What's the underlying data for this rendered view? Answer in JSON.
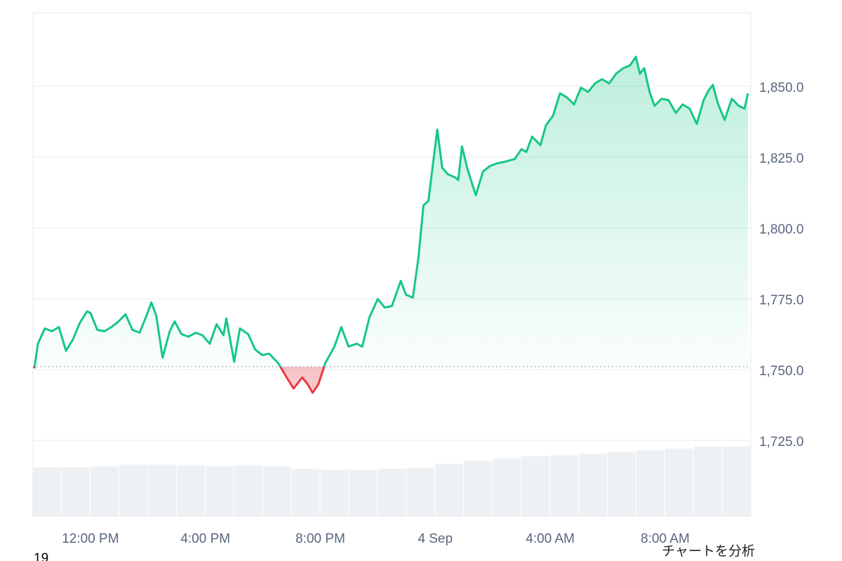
{
  "chart_data": {
    "type": "line",
    "series": [
      {
        "color": "#16c784",
        "below_color": "#ea3943",
        "x": [
          10.05,
          10.17,
          10.41,
          10.66,
          10.9,
          11.15,
          11.39,
          11.63,
          11.88,
          12.0,
          12.24,
          12.49,
          12.73,
          12.98,
          13.22,
          13.46,
          13.71,
          13.95,
          14.12,
          14.29,
          14.51,
          14.76,
          14.93,
          15.17,
          15.41,
          15.66,
          15.9,
          16.15,
          16.39,
          16.63,
          16.73,
          17.0,
          17.2,
          17.49,
          17.73,
          17.98,
          18.22,
          18.54,
          18.83,
          19.07,
          19.37,
          19.56,
          19.73,
          19.93,
          20.17,
          20.49,
          20.73,
          20.98,
          21.27,
          21.46,
          21.71,
          22.0,
          22.24,
          22.49,
          22.63,
          22.8,
          22.98,
          23.22,
          23.41,
          23.59,
          23.76,
          24.07,
          24.24,
          24.44,
          24.68,
          24.8,
          24.93,
          25.12,
          25.41,
          25.66,
          25.9,
          26.15,
          26.39,
          26.76,
          27.0,
          27.17,
          27.37,
          27.66,
          27.85,
          28.1,
          28.34,
          28.59,
          28.83,
          29.07,
          29.32,
          29.56,
          29.8,
          30.05,
          30.29,
          30.54,
          30.78,
          30.98,
          31.12,
          31.27,
          31.46,
          31.63,
          31.88,
          32.12,
          32.37,
          32.61,
          32.85,
          33.1,
          33.34,
          33.51,
          33.66,
          33.83,
          34.07,
          34.32,
          34.56,
          34.76,
          34.88
        ],
        "values": [
          1750.4,
          1759.1,
          1764.5,
          1763.5,
          1765.0,
          1756.6,
          1760.6,
          1766.5,
          1770.5,
          1770.0,
          1764.0,
          1763.5,
          1765.0,
          1767.0,
          1769.5,
          1764.0,
          1763.0,
          1769.0,
          1773.7,
          1769.0,
          1754.2,
          1763.5,
          1767.0,
          1762.5,
          1761.6,
          1763.0,
          1762.1,
          1759.1,
          1766.0,
          1762.1,
          1768.0,
          1752.7,
          1764.5,
          1762.5,
          1757.1,
          1755.1,
          1755.6,
          1752.2,
          1747.2,
          1743.3,
          1747.2,
          1744.8,
          1741.8,
          1744.8,
          1752.2,
          1758.1,
          1765.0,
          1758.1,
          1759.1,
          1758.1,
          1768.5,
          1774.9,
          1771.9,
          1772.4,
          1776.4,
          1781.3,
          1776.4,
          1775.4,
          1789.2,
          1808.0,
          1809.5,
          1834.7,
          1821.3,
          1818.9,
          1817.9,
          1816.9,
          1828.8,
          1820.8,
          1811.5,
          1819.9,
          1821.8,
          1822.8,
          1823.3,
          1824.3,
          1827.8,
          1826.8,
          1832.2,
          1829.2,
          1836.2,
          1839.6,
          1847.5,
          1846.0,
          1843.6,
          1849.5,
          1848.0,
          1851.0,
          1852.5,
          1851.0,
          1854.4,
          1856.4,
          1857.4,
          1860.4,
          1854.4,
          1856.4,
          1848.0,
          1843.1,
          1845.6,
          1845.1,
          1840.6,
          1843.6,
          1842.1,
          1836.7,
          1845.1,
          1848.5,
          1850.5,
          1844.1,
          1838.1,
          1845.6,
          1843.1,
          1842.1,
          1847.5
        ]
      }
    ],
    "baseline": 1751,
    "xlim": [
      10.0,
      34.98
    ],
    "xticks": [
      {
        "value": 12,
        "label": "12:00 PM"
      },
      {
        "value": 16,
        "label": "4:00 PM"
      },
      {
        "value": 20,
        "label": "8:00 PM"
      },
      {
        "value": 24,
        "label": "4 Sep"
      },
      {
        "value": 28,
        "label": "4:00 AM"
      },
      {
        "value": 32,
        "label": "8:00 AM"
      }
    ],
    "ylim": [
      1698,
      1876
    ],
    "yticks": [
      {
        "value": 1725,
        "label": "1,725.0"
      },
      {
        "value": 1750,
        "label": "1,750.0"
      },
      {
        "value": 1775,
        "label": "1,775.0"
      },
      {
        "value": 1800,
        "label": "1,800.0"
      },
      {
        "value": 1825,
        "label": "1,825.0"
      },
      {
        "value": 1850,
        "label": "1,850.0"
      }
    ],
    "grid": true,
    "volume": {
      "color": "#eef1f4",
      "ylim": [
        0,
        100
      ],
      "x": [
        10,
        11,
        12,
        13,
        14,
        15,
        16,
        17,
        18,
        19,
        20,
        21,
        22,
        23,
        24,
        25,
        26,
        27,
        28,
        29,
        30,
        31,
        32,
        33,
        34
      ],
      "values": [
        59,
        59,
        60,
        62,
        62,
        61,
        60,
        61,
        60,
        57,
        56,
        56,
        57,
        58,
        63,
        67,
        69,
        72,
        73,
        75,
        77,
        79,
        81,
        84,
        84
      ]
    },
    "footer_left": "19",
    "footer_right": "チャートを分析"
  }
}
